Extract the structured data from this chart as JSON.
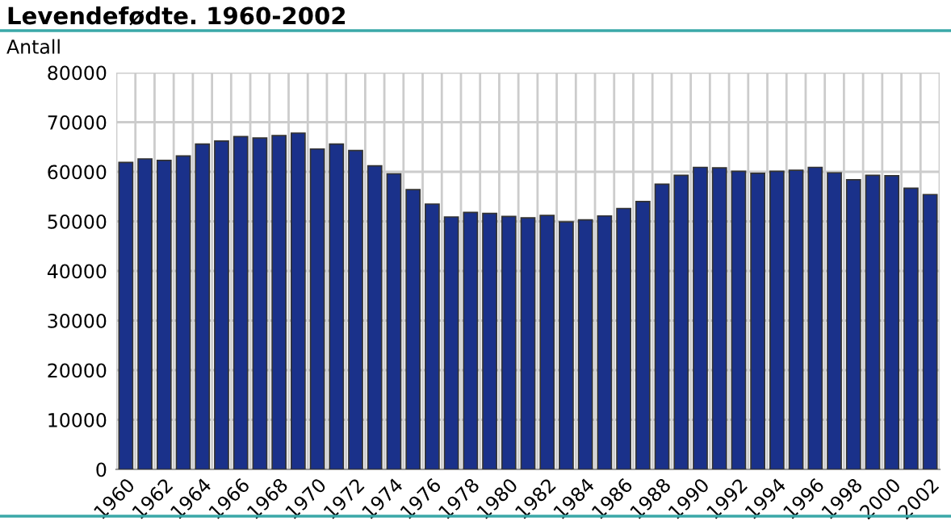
{
  "chart_data": {
    "type": "bar",
    "title": "Levendefødte. 1960-2002",
    "ylabel": "Antall",
    "categories": [
      "1960",
      null,
      "1962",
      null,
      "1964",
      null,
      "1966",
      null,
      "1968",
      null,
      "1970",
      null,
      "1972",
      null,
      "1974",
      null,
      "1976",
      null,
      "1978",
      null,
      "1980",
      null,
      "1982",
      null,
      "1984",
      null,
      "1986",
      null,
      "1988",
      null,
      "1990",
      null,
      "1992",
      null,
      "1994",
      null,
      "1996",
      null,
      "1998",
      null,
      "2000",
      null,
      "2002"
    ],
    "values": [
      61900,
      62600,
      62300,
      63200,
      65600,
      66200,
      67100,
      66800,
      67300,
      67800,
      64600,
      65600,
      64300,
      61200,
      59600,
      56400,
      53500,
      50900,
      51800,
      51600,
      51000,
      50700,
      51200,
      49900,
      50300,
      51100,
      52600,
      54000,
      57500,
      59300,
      60900,
      60800,
      60100,
      59700,
      60100,
      60300,
      60900,
      59800,
      58400,
      59300,
      59200,
      56700,
      55400
    ],
    "color": "#1a318a",
    "ylim": [
      0,
      80000
    ],
    "yticks": [
      0,
      10000,
      20000,
      30000,
      40000,
      50000,
      60000,
      70000,
      80000
    ],
    "grid": true
  }
}
